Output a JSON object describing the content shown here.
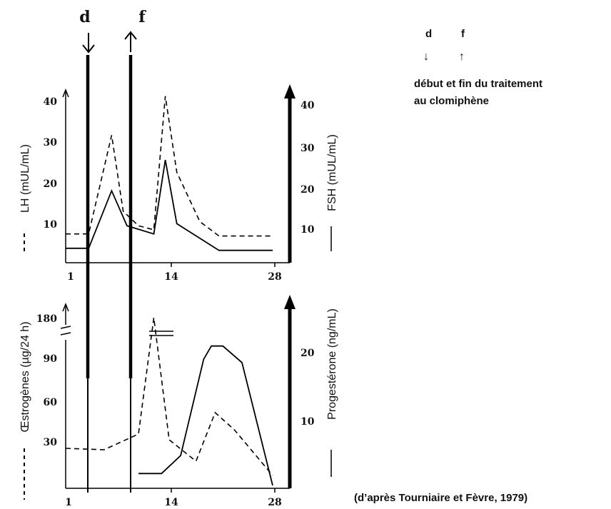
{
  "legend": {
    "d_letter": "d",
    "f_letter": "f",
    "d_arrow": "↓",
    "f_arrow": "↑",
    "line1": "début et fin du traitement",
    "line2": "au clomiphène"
  },
  "markers": {
    "d": {
      "label": "d",
      "day": 2
    },
    "f": {
      "label": "f",
      "day": 4
    }
  },
  "source": "(d’après Tourniaire et Fèvre, 1979)",
  "chart_data": [
    {
      "type": "line",
      "xlabel": "",
      "xticks": [
        "1",
        "14",
        "28"
      ],
      "xlim": [
        1,
        28
      ],
      "left_axis": {
        "label": "LH (mUL/mL)",
        "legend_symbol": "- - -",
        "ticks": [
          "10",
          "20",
          "30",
          "40"
        ],
        "ylim": [
          0,
          45
        ]
      },
      "right_axis": {
        "label": "FSH (mUL/mL)",
        "legend_symbol": "——",
        "ticks": [
          "10",
          "20",
          "30",
          "40"
        ],
        "ylim": [
          0,
          45
        ]
      },
      "series": [
        {
          "name": "LH",
          "axis": "left",
          "style": "dashed",
          "points": [
            [
              1,
              7
            ],
            [
              4,
              7
            ],
            [
              7,
              31
            ],
            [
              8.5,
              12.5
            ],
            [
              10.5,
              9
            ],
            [
              12.5,
              8
            ],
            [
              14,
              40.5
            ],
            [
              15.5,
              22
            ],
            [
              18.5,
              10
            ],
            [
              21,
              6.5
            ],
            [
              28,
              6.5
            ]
          ]
        },
        {
          "name": "FSH",
          "axis": "right",
          "style": "solid",
          "points": [
            [
              1,
              3.5
            ],
            [
              4,
              3.5
            ],
            [
              7,
              17.5
            ],
            [
              9,
              9
            ],
            [
              12.5,
              7
            ],
            [
              14,
              25
            ],
            [
              15.5,
              9.5
            ],
            [
              21,
              3
            ],
            [
              28,
              3
            ]
          ]
        }
      ]
    },
    {
      "type": "line",
      "xlabel": "",
      "xticks": [
        "1",
        "14",
        "28"
      ],
      "xlim": [
        1,
        28
      ],
      "left_axis": {
        "label": "Œstrogènes (µg/24 h)",
        "legend_symbol": "- - -",
        "ticks": [
          "30",
          "60",
          "90",
          "180"
        ],
        "axis_break": "between 90 and 180"
      },
      "right_axis": {
        "label": "Progestérone (ng/mL)",
        "legend_symbol": "——",
        "ticks": [
          "10",
          "20"
        ],
        "ylim": [
          0,
          27
        ]
      },
      "series": [
        {
          "name": "Œstrogènes",
          "axis": "left",
          "style": "dashed",
          "points": [
            [
              1,
              27
            ],
            [
              6,
              26
            ],
            [
              10.5,
              37
            ],
            [
              12.5,
              185
            ],
            [
              14.5,
              33
            ],
            [
              18,
              18
            ],
            [
              20.5,
              52
            ],
            [
              23,
              40
            ],
            [
              28,
              8
            ]
          ]
        },
        {
          "name": "Progestérone",
          "axis": "right",
          "style": "solid",
          "points": [
            [
              10.5,
              1.8
            ],
            [
              13.5,
              1.8
            ],
            [
              16,
              4.5
            ],
            [
              19,
              19
            ],
            [
              20,
              21
            ],
            [
              21.5,
              21
            ],
            [
              24,
              18.5
            ],
            [
              28,
              0
            ]
          ]
        }
      ]
    }
  ]
}
